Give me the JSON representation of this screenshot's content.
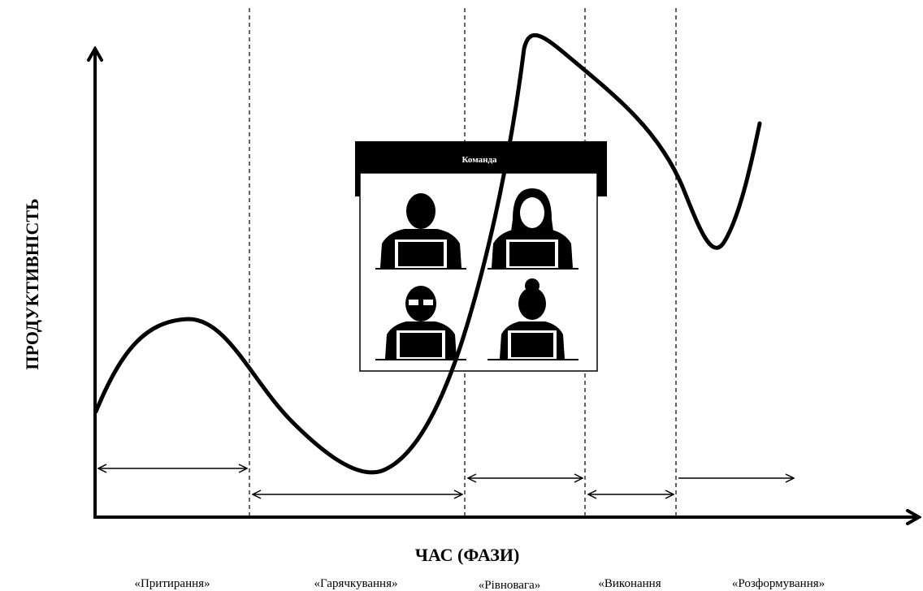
{
  "y_axis_label": "ПРОДУКТИВНІСТЬ",
  "x_axis_label": "ЧАС (ФАЗИ)",
  "team_box": {
    "title": "Команда"
  },
  "phases": [
    "«Притирання»",
    "«Гарячкування»",
    "«Рівновага»",
    "«Виконання",
    "«Розформування»"
  ]
}
